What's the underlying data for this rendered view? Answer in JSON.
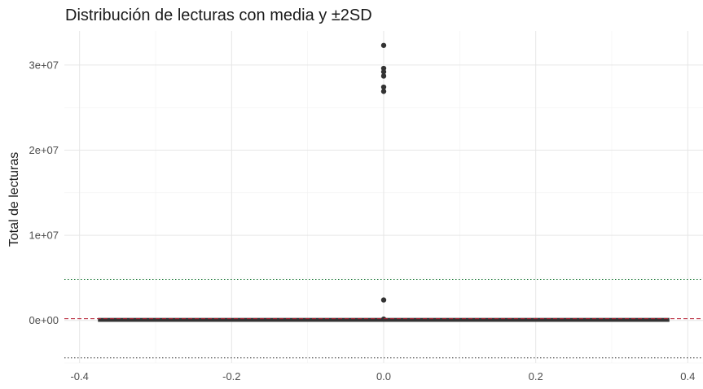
{
  "chart_data": {
    "type": "boxplot",
    "title": "Distribución de lecturas con media y ±2SD",
    "xlabel": "",
    "ylabel": "Total de lecturas",
    "xlim": [
      -0.42,
      0.42
    ],
    "ylim": [
      -5000000,
      34000000
    ],
    "x_ticks": [
      -0.4,
      -0.2,
      0.0,
      0.2,
      0.4
    ],
    "x_tick_labels": [
      "-0.4",
      "-0.2",
      "0.0",
      "0.2",
      "0.4"
    ],
    "y_ticks": [
      0,
      10000000,
      20000000,
      30000000
    ],
    "y_tick_labels": [
      "0e+00",
      "1e+07",
      "2e+07",
      "3e+07"
    ],
    "grid": true,
    "box": {
      "x_center": 0.0,
      "half_width": 0.375,
      "lower": 0,
      "median": 50000,
      "upper": 120000
    },
    "outliers": [
      {
        "x": 0.0,
        "y": 32300000
      },
      {
        "x": 0.0,
        "y": 29600000
      },
      {
        "x": 0.0,
        "y": 29200000
      },
      {
        "x": 0.0,
        "y": 28700000
      },
      {
        "x": 0.0,
        "y": 27400000
      },
      {
        "x": 0.0,
        "y": 26900000
      },
      {
        "x": 0.0,
        "y": 2400000
      },
      {
        "x": 0.0,
        "y": 150000
      }
    ],
    "reference_lines": [
      {
        "name": "mean",
        "y": 200000,
        "color": "#b2182b",
        "style": "dashed"
      },
      {
        "name": "mean+2SD",
        "y": 4800000,
        "color": "#1b7837",
        "style": "dotted"
      },
      {
        "name": "mean-2SD",
        "y": -4400000,
        "color": "#2b2b2b",
        "style": "dotted"
      }
    ]
  }
}
